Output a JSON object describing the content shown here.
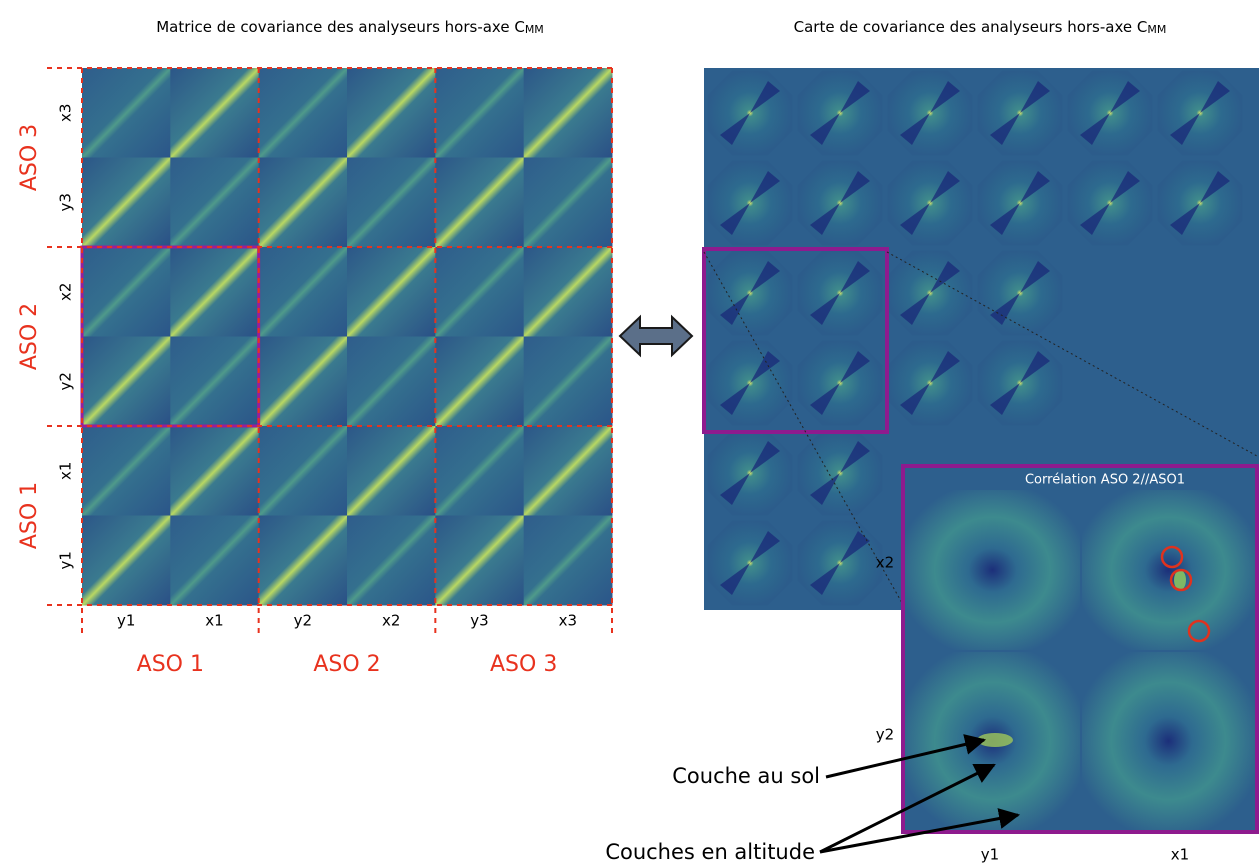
{
  "left_panel": {
    "title": "Matrice de covariance des analyseurs hors-axe C",
    "title_subscript": "MM",
    "row_groups": [
      "ASO 3",
      "ASO 2",
      "ASO 1"
    ],
    "row_labels": [
      "x3",
      "y3",
      "x2",
      "y2",
      "x1",
      "y1"
    ],
    "column_labels": [
      "y1",
      "x1",
      "y2",
      "x2",
      "y3",
      "x3"
    ],
    "column_groups": [
      "ASO 1",
      "ASO 2",
      "ASO 3"
    ]
  },
  "right_panel": {
    "title": "Carte de covariance des analyseurs hors-axe C",
    "title_subscript": "MM",
    "inset": {
      "title": "Corrélation ASO 2//ASO1",
      "row_labels": [
        "x2",
        "y2"
      ],
      "column_labels": [
        "y1",
        "x1"
      ]
    }
  },
  "annotations": [
    "Couche au sol",
    "Couches en altitude"
  ]
}
